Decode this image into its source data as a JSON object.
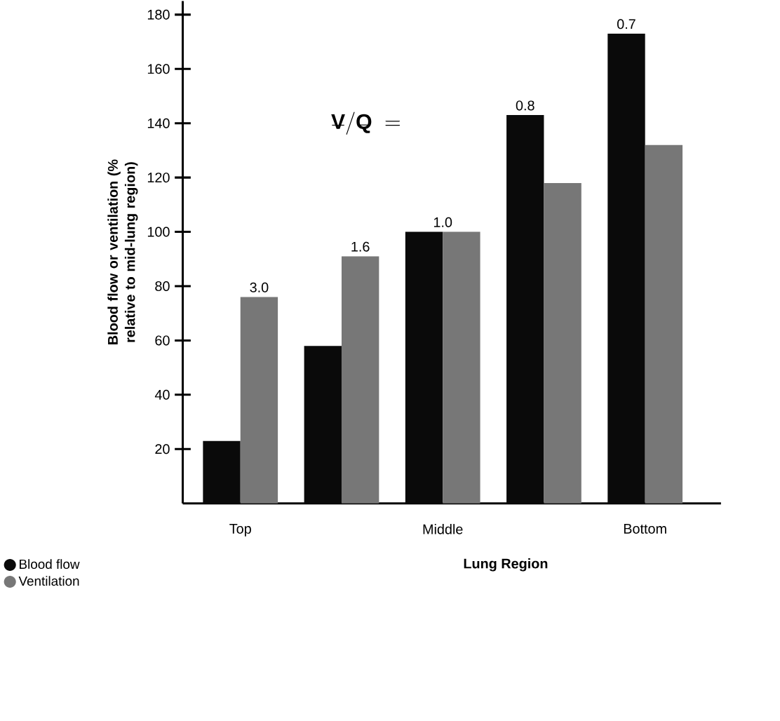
{
  "chart_data": {
    "type": "bar",
    "xlabel": "Lung Region",
    "ylabel": "Blood flow or ventilation (% relative to mid-lung region)",
    "categories": [
      "Top",
      null,
      "Middle",
      null,
      "Bottom"
    ],
    "series": [
      {
        "name": "Blood flow",
        "color": "#0a0a0a",
        "values": [
          23,
          58,
          100,
          143,
          173
        ]
      },
      {
        "name": "Ventilation",
        "color": "#777777",
        "values": [
          76,
          91,
          100,
          118,
          132
        ]
      }
    ],
    "ylim": [
      0,
      185
    ],
    "yticks": [
      20,
      40,
      60,
      80,
      100,
      120,
      140,
      160,
      180
    ],
    "annotations": [
      "\\mathbf{\\dot{V}/\\dot{Q}\\ =}",
      "3.0",
      "1.6",
      "1.0",
      "0.8",
      "0.7"
    ],
    "legend": "bottom left"
  }
}
